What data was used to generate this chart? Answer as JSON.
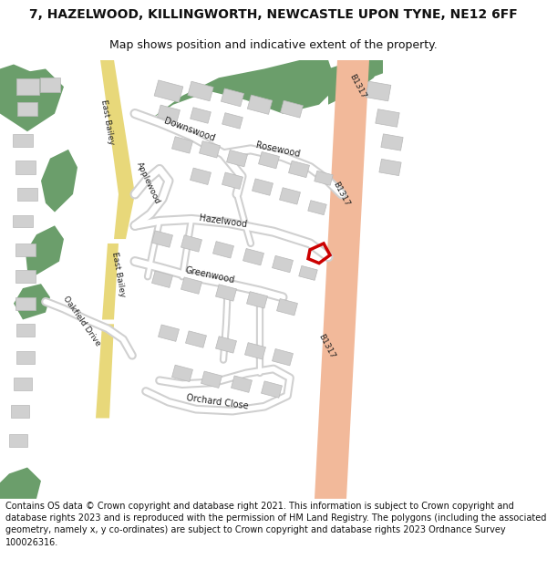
{
  "title": "7, HAZELWOOD, KILLINGWORTH, NEWCASTLE UPON TYNE, NE12 6FF",
  "subtitle": "Map shows position and indicative extent of the property.",
  "footer": "Contains OS data © Crown copyright and database right 2021. This information is subject to Crown copyright and database rights 2023 and is reproduced with the permission of HM Land Registry. The polygons (including the associated geometry, namely x, y co-ordinates) are subject to Crown copyright and database rights 2023 Ordnance Survey 100026316.",
  "bg": "#ffffff",
  "map_bg": "#f0f0ee",
  "green": "#6b9e6b",
  "green2": "#5a8f5a",
  "road_b1317": "#f2b99a",
  "road_eb_yellow": "#e8d87a",
  "road_white": "#ffffff",
  "road_edge": "#d0d0d0",
  "building": "#d0d0d0",
  "building_edge": "#b8b8b8",
  "prop_color": "#cc0000",
  "text_color": "#222222",
  "title_fs": 10,
  "subtitle_fs": 9,
  "footer_fs": 7
}
